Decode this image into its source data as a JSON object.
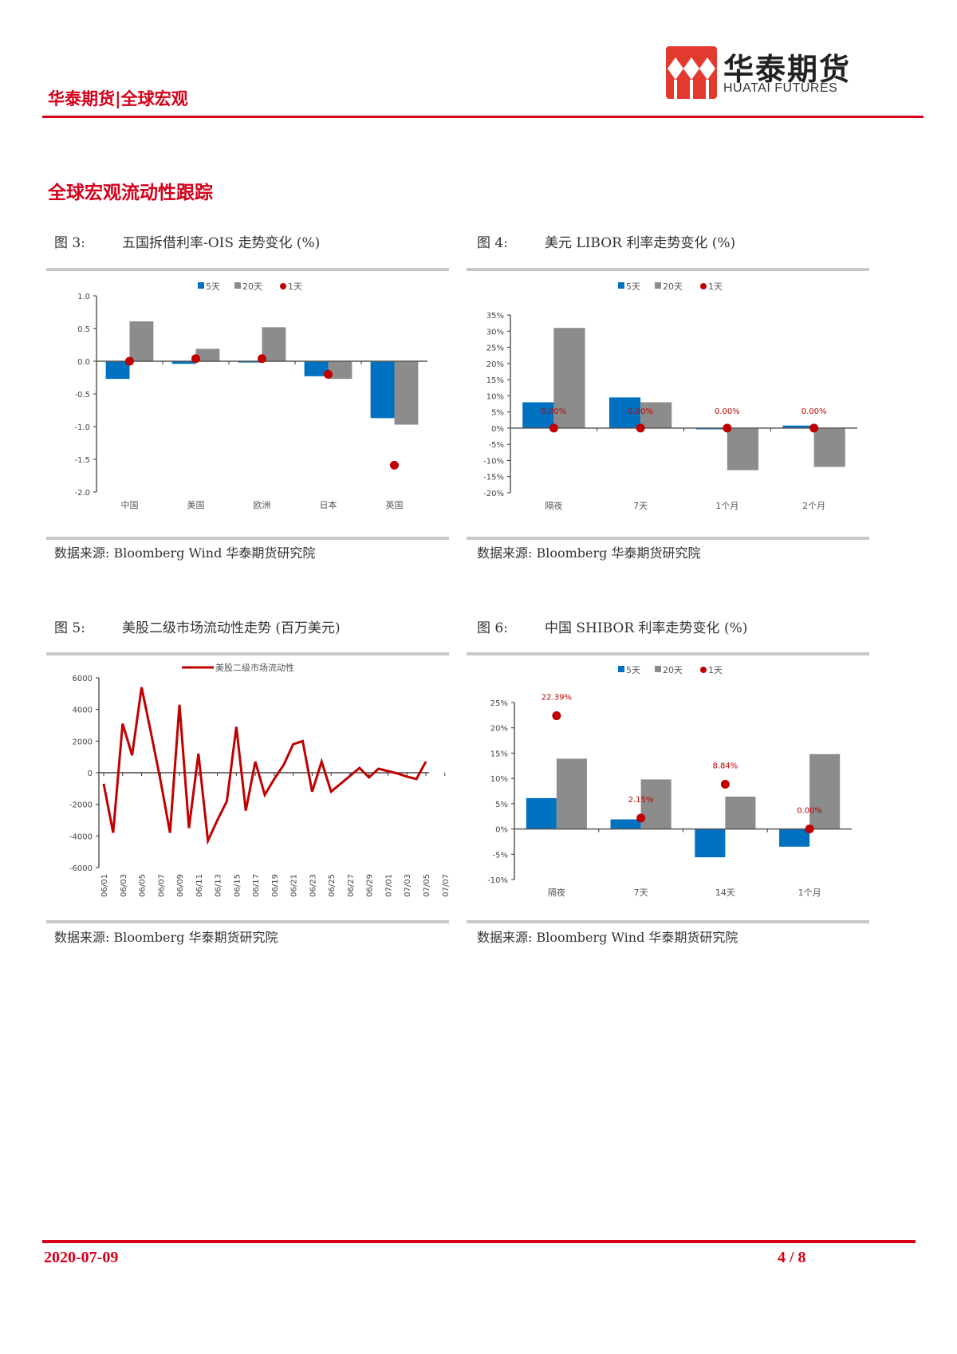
{
  "header": {
    "left_title": "华泰期货|全球宏观",
    "logo_name": "华泰期货",
    "logo_en": "HUATAI FUTURES"
  },
  "section_title": "全球宏观流动性跟踪",
  "colors": {
    "brand_red": "#d4001a",
    "bar_5d": "#0070c0",
    "bar_20d": "#8c8c8c",
    "dot_1d": "#c00000",
    "line": "#c00000"
  },
  "figures": [
    {
      "num": "图 3:",
      "title": "五国拆借利率-OIS 走势变化 (%)",
      "source": "数据来源: Bloomberg Wind 华泰期货研究院"
    },
    {
      "num": "图 4:",
      "title": "美元 LIBOR 利率走势变化 (%)",
      "source": "数据来源: Bloomberg 华泰期货研究院"
    },
    {
      "num": "图 5:",
      "title": "美股二级市场流动性走势 (百万美元)",
      "source": "数据来源: Bloomberg 华泰期货研究院"
    },
    {
      "num": "图 6:",
      "title": "中国 SHIBOR 利率走势变化 (%)",
      "source": "数据来源: Bloomberg Wind 华泰期货研究院"
    }
  ],
  "footer": {
    "date": "2020-07-09",
    "page": "4 / 8"
  },
  "chart_data": [
    {
      "type": "bar",
      "title": "五国拆借利率-OIS 走势变化 (%)",
      "categories": [
        "中国",
        "美国",
        "欧洲",
        "日本",
        "英国"
      ],
      "series": [
        {
          "name": "5天",
          "type": "bar",
          "values": [
            -0.27,
            -0.04,
            -0.02,
            -0.23,
            -0.87
          ]
        },
        {
          "name": "20天",
          "type": "bar",
          "values": [
            0.61,
            0.19,
            0.52,
            -0.27,
            -0.97
          ]
        },
        {
          "name": "1天",
          "type": "scatter",
          "values": [
            0.0,
            0.04,
            0.04,
            -0.2,
            -1.59
          ]
        }
      ],
      "yticks": [
        "1.0",
        "0.5",
        "0.0",
        "-0.5",
        "-1.0",
        "-1.5",
        "-2.0"
      ],
      "ylim": [
        -2.0,
        1.0
      ],
      "legend_position": "top"
    },
    {
      "type": "bar",
      "title": "美元 LIBOR 利率走势变化 (%)",
      "categories": [
        "隔夜",
        "7天",
        "1个月",
        "2个月"
      ],
      "series": [
        {
          "name": "5天",
          "type": "bar",
          "values": [
            8.0,
            9.5,
            -0.2,
            0.8
          ]
        },
        {
          "name": "20天",
          "type": "bar",
          "values": [
            31.0,
            8.0,
            -13.0,
            -12.0
          ]
        },
        {
          "name": "1天",
          "type": "scatter",
          "values": [
            0.0,
            0.0,
            0.0,
            0.0
          ],
          "labels": [
            "0.00%",
            "0.00%",
            "0.00%",
            "0.00%"
          ]
        }
      ],
      "yticks": [
        "35%",
        "30%",
        "25%",
        "20%",
        "15%",
        "10%",
        "5%",
        "0%",
        "-5%",
        "-10%",
        "-15%",
        "-20%"
      ],
      "ylim": [
        -20,
        35
      ],
      "legend_position": "top"
    },
    {
      "type": "line",
      "title": "美股二级市场流动性走势 (百万美元)",
      "series": [
        {
          "name": "美股二级市场流动性",
          "values": [
            -700,
            -3800,
            3100,
            1100,
            5400,
            2500,
            -500,
            -3800,
            4300,
            -3500,
            1200,
            -4300,
            -3000,
            -1800,
            2900,
            -2400,
            700,
            -1400,
            -400,
            500,
            1800,
            2000,
            -1200,
            700,
            -1200,
            -700,
            -200,
            300,
            -300,
            250,
            100,
            -50,
            -250,
            -400,
            700
          ]
        }
      ],
      "x_ticks": [
        "06/01",
        "06/03",
        "06/05",
        "06/07",
        "06/09",
        "06/11",
        "06/13",
        "06/15",
        "06/17",
        "06/19",
        "06/21",
        "06/23",
        "06/25",
        "06/27",
        "06/29",
        "07/01",
        "07/03",
        "07/05",
        "07/07"
      ],
      "yticks": [
        "6000",
        "4000",
        "2000",
        "0",
        "-2000",
        "-4000",
        "-6000"
      ],
      "ylim": [
        -6000,
        6000
      ],
      "legend_position": "top"
    },
    {
      "type": "bar",
      "title": "中国 SHIBOR 利率走势变化 (%)",
      "categories": [
        "隔夜",
        "7天",
        "14天",
        "1个月"
      ],
      "series": [
        {
          "name": "5天",
          "type": "bar",
          "values": [
            6.1,
            1.9,
            -5.6,
            -3.5
          ]
        },
        {
          "name": "20天",
          "type": "bar",
          "values": [
            13.9,
            9.8,
            6.4,
            14.8
          ]
        },
        {
          "name": "1天",
          "type": "scatter",
          "values": [
            22.39,
            2.15,
            8.84,
            0.0
          ],
          "labels": [
            "22.39%",
            "2.15%",
            "8.84%",
            "0.00%"
          ]
        }
      ],
      "yticks": [
        "25%",
        "20%",
        "15%",
        "10%",
        "5%",
        "0%",
        "-5%",
        "-10%"
      ],
      "ylim": [
        -10,
        25
      ],
      "legend_position": "top"
    }
  ]
}
